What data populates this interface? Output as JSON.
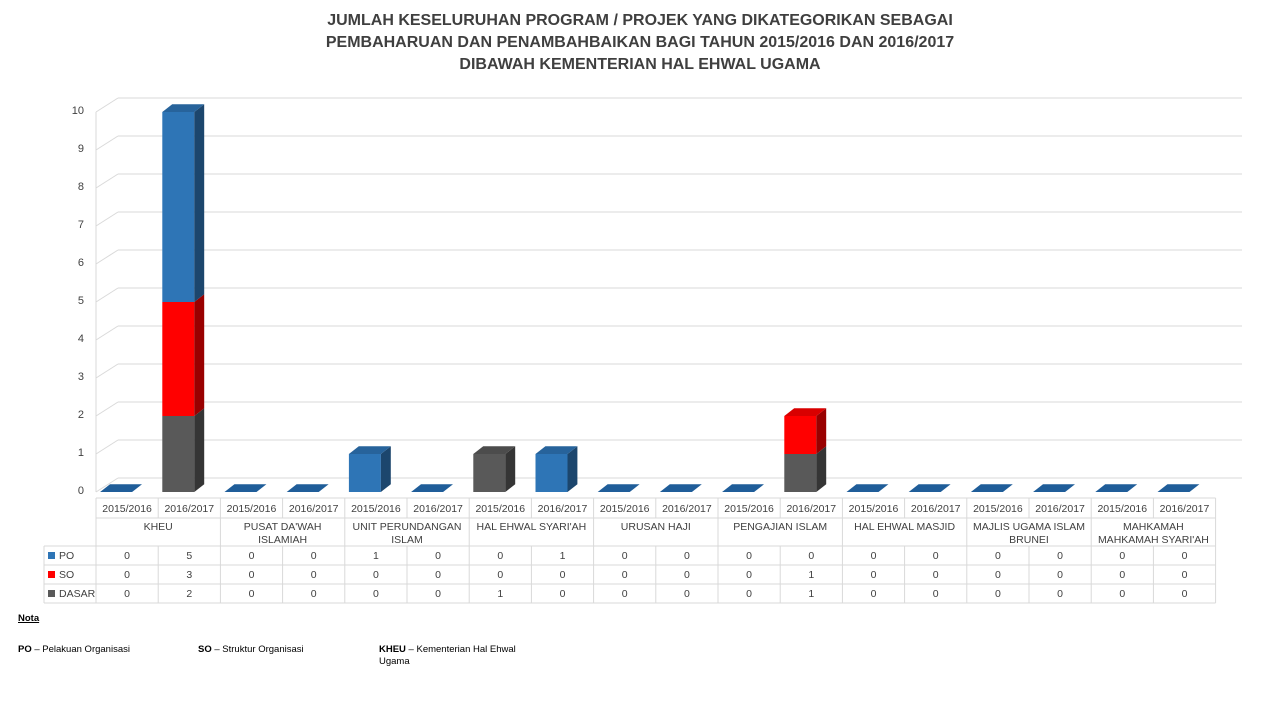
{
  "title": [
    "JUMLAH KESELURUHAN PROGRAM / PROJEK YANG DIKATEGORIKAN SEBAGAI",
    "PEMBAHARUAN DAN PENAMBAHBAIKAN  BAGI TAHUN 2015/2016 DAN 2016/2017",
    "DIBAWAH KEMENTERIAN HAL EHWAL UGAMA"
  ],
  "chart_data": {
    "type": "bar",
    "stacked": true,
    "three_d": true,
    "ylim": [
      0,
      10
    ],
    "yticks": [
      0,
      1,
      2,
      3,
      4,
      5,
      6,
      7,
      8,
      9,
      10
    ],
    "grid": true,
    "groups": [
      {
        "label": [
          "KHEU"
        ]
      },
      {
        "label": [
          "PUSAT DA'WAH",
          "ISLAMIAH"
        ]
      },
      {
        "label": [
          "UNIT PERUNDANGAN",
          "ISLAM"
        ]
      },
      {
        "label": [
          "HAL EHWAL SYARI'AH"
        ]
      },
      {
        "label": [
          "URUSAN HAJI"
        ]
      },
      {
        "label": [
          "PENGAJIAN ISLAM"
        ]
      },
      {
        "label": [
          "HAL EHWAL MASJID"
        ]
      },
      {
        "label": [
          "MAJLIS UGAMA ISLAM",
          "BRUNEI"
        ]
      },
      {
        "label": [
          "MAHKAMAH",
          "MAHKAMAH SYARI'AH"
        ]
      }
    ],
    "years": [
      "2015/2016",
      "2016/2017"
    ],
    "series": [
      {
        "name": "DASAR",
        "color": "#595959",
        "values": [
          0,
          2,
          0,
          0,
          0,
          0,
          1,
          0,
          0,
          0,
          0,
          1,
          0,
          0,
          0,
          0,
          0,
          0
        ]
      },
      {
        "name": "SO",
        "color": "#ff0000",
        "values": [
          0,
          3,
          0,
          0,
          0,
          0,
          0,
          0,
          0,
          0,
          0,
          1,
          0,
          0,
          0,
          0,
          0,
          0
        ]
      },
      {
        "name": "PO",
        "color": "#2e75b6",
        "values": [
          0,
          5,
          0,
          0,
          1,
          0,
          0,
          1,
          0,
          0,
          0,
          0,
          0,
          0,
          0,
          0,
          0,
          0
        ]
      }
    ],
    "table_order": [
      "PO",
      "SO",
      "DASAR"
    ]
  },
  "nota": {
    "heading": "Nota",
    "items": [
      {
        "abbr": "PO",
        "text": " – Pelakuan Organisasi"
      },
      {
        "abbr": "SO",
        "text": " – Struktur Organisasi"
      },
      {
        "abbr": "KHEU",
        "text": " – Kementerian Hal Ehwal Ugama"
      }
    ]
  }
}
